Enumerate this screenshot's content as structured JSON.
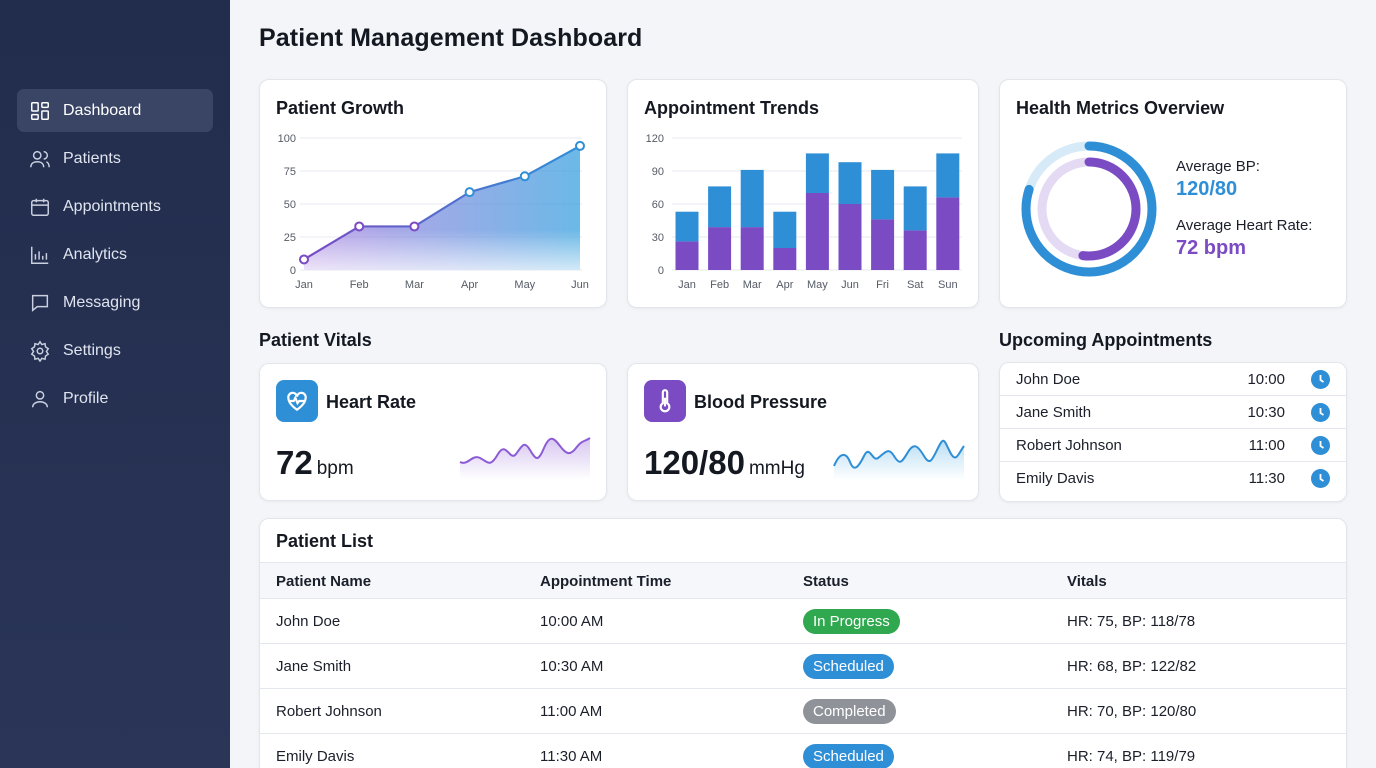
{
  "sidebar": {
    "items": [
      {
        "label": "Dashboard",
        "icon": "dashboard-icon",
        "active": true
      },
      {
        "label": "Patients",
        "icon": "users-icon"
      },
      {
        "label": "Appointments",
        "icon": "calendar-icon"
      },
      {
        "label": "Analytics",
        "icon": "bar-chart-icon"
      },
      {
        "label": "Messaging",
        "icon": "chat-icon"
      },
      {
        "label": "Settings",
        "icon": "gear-icon"
      },
      {
        "label": "Profile",
        "icon": "user-icon"
      }
    ]
  },
  "page": {
    "title": "Patient Management Dashboard"
  },
  "patient_growth": {
    "title": "Patient Growth"
  },
  "appointment_trends": {
    "title": "Appointment Trends"
  },
  "health_metrics": {
    "title": "Health Metrics Overview",
    "avg_bp_label": "Average BP:",
    "avg_bp_value": "120/80",
    "avg_hr_label": "Average Heart Rate:",
    "avg_hr_value": "72 bpm",
    "outer_ring_fraction": 0.8,
    "inner_ring_fraction": 0.52
  },
  "vitals": {
    "title": "Patient Vitals",
    "heart_rate": {
      "label": "Heart Rate",
      "value": "72",
      "unit": "bpm",
      "icon": "heart-pulse-icon"
    },
    "blood_pressure": {
      "label": "Blood Pressure",
      "value": "120/80",
      "unit": "mmHg",
      "icon": "thermometer-icon"
    }
  },
  "upcoming": {
    "title": "Upcoming Appointments",
    "items": [
      {
        "name": "John Doe",
        "time": "10:00"
      },
      {
        "name": "Jane Smith",
        "time": "10:30"
      },
      {
        "name": "Robert Johnson",
        "time": "11:00"
      },
      {
        "name": "Emily Davis",
        "time": "11:30"
      }
    ]
  },
  "patient_list": {
    "title": "Patient List",
    "columns": [
      "Patient Name",
      "Appointment Time",
      "Status",
      "Vitals"
    ],
    "rows": [
      {
        "name": "John Doe",
        "time": "10:00 AM",
        "status": "In Progress",
        "vitals": "HR: 75, BP: 118/78"
      },
      {
        "name": "Jane Smith",
        "time": "10:30 AM",
        "status": "Scheduled",
        "vitals": "HR: 68, BP: 122/82"
      },
      {
        "name": "Robert Johnson",
        "time": "11:00 AM",
        "status": "Completed",
        "vitals": "HR: 70, BP: 120/80"
      },
      {
        "name": "Emily Davis",
        "time": "11:30 AM",
        "status": "Scheduled",
        "vitals": "HR: 74, BP: 119/79"
      }
    ]
  },
  "colors": {
    "sidebar_bg": "#222c4c",
    "accent_blue": "#2f8fd6",
    "accent_purple": "#7b4bc4",
    "status_in_progress": "#2fa84f",
    "status_scheduled": "#2f8fd6",
    "status_completed": "#8f9399"
  },
  "chart_data": [
    {
      "type": "area",
      "title": "Patient Growth",
      "x": [
        "Jan",
        "Feb",
        "Mar",
        "Apr",
        "May",
        "Jun"
      ],
      "values": [
        8,
        33,
        33,
        59,
        71,
        94
      ],
      "yticks": [
        0,
        25,
        50,
        75,
        100
      ],
      "ylim": [
        0,
        100
      ],
      "grid": true
    },
    {
      "type": "bar",
      "title": "Appointment Trends",
      "categories": [
        "Jan",
        "Feb",
        "Mar",
        "Apr",
        "May",
        "Jun",
        "Fri",
        "Sat",
        "Sun"
      ],
      "series": [
        {
          "values": [
            26,
            39,
            39,
            20,
            70,
            60,
            46,
            36,
            66
          ]
        },
        {
          "values": [
            27,
            37,
            52,
            33,
            36,
            38,
            45,
            40,
            40
          ]
        }
      ],
      "stacked": true,
      "yticks": [
        0,
        30,
        60,
        90,
        120
      ],
      "ylim": [
        0,
        120
      ],
      "grid": true
    }
  ]
}
